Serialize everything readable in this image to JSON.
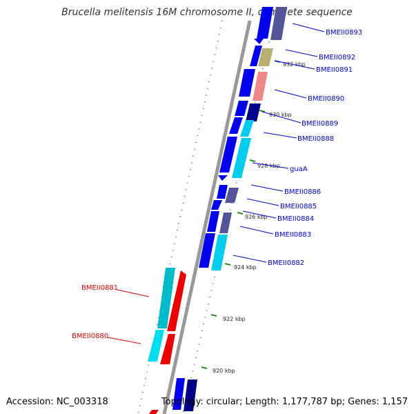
{
  "title": "Brucella melitensis 16M chromosome II, complete sequence",
  "footer": {
    "accession": "Accession: NC_003318",
    "topology": "Topology: circular; Length: 1,177,787 bp; Genes: 1,157"
  },
  "colors": {
    "backbone": "#999999",
    "tick": "#2a8a2a",
    "label_forward": "#0000cc",
    "label_reverse": "#dd0000"
  },
  "ticks": [
    "932 kbp",
    "930 kbp",
    "928 kbp",
    "926 kbp",
    "924 kbp",
    "922 kbp",
    "920 kbp"
  ],
  "genes_forward": [
    {
      "name": "BMEII0893"
    },
    {
      "name": "BMEII0892"
    },
    {
      "name": "BMEII0891"
    },
    {
      "name": "BMEII0890"
    },
    {
      "name": "BMEII0889"
    },
    {
      "name": "BMEII0888"
    },
    {
      "name": "guaA"
    },
    {
      "name": "BMEII0886"
    },
    {
      "name": "BMEII0885"
    },
    {
      "name": "BMEII0884"
    },
    {
      "name": "BMEII0883"
    },
    {
      "name": "BMEII0882"
    }
  ],
  "genes_reverse": [
    {
      "name": "BMEII0881"
    },
    {
      "name": "BMEII0880"
    }
  ]
}
